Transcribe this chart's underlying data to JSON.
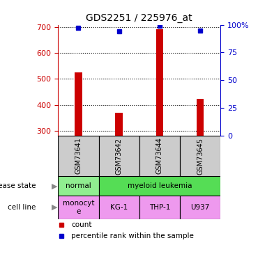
{
  "title": "GDS2251 / 225976_at",
  "samples": [
    "GSM73641",
    "GSM73642",
    "GSM73644",
    "GSM73645"
  ],
  "bar_values": [
    525,
    368,
    693,
    422
  ],
  "percentile_values": [
    97,
    94,
    99,
    95
  ],
  "ylim_left": [
    280,
    710
  ],
  "ylim_right": [
    0,
    100
  ],
  "yticks_left": [
    300,
    400,
    500,
    600,
    700
  ],
  "yticks_right": [
    0,
    25,
    50,
    75,
    100
  ],
  "yticklabels_right": [
    "0",
    "25",
    "50",
    "75",
    "100%"
  ],
  "bar_color": "#cc0000",
  "dot_color": "#0000cc",
  "cell_line_colors": "#ee99ee",
  "normal_color": "#90EE90",
  "leukemia_color": "#55dd55",
  "sample_box_color": "#cccccc",
  "left_axis_color": "#cc0000",
  "right_axis_color": "#0000cc",
  "legend_count_label": "count",
  "legend_percentile_label": "percentile rank within the sample",
  "disease_state_label": "disease state",
  "cell_line_label": "cell line",
  "cell_lines": [
    "monocyt\ne",
    "KG-1",
    "THP-1",
    "U937"
  ],
  "bar_width": 0.18
}
